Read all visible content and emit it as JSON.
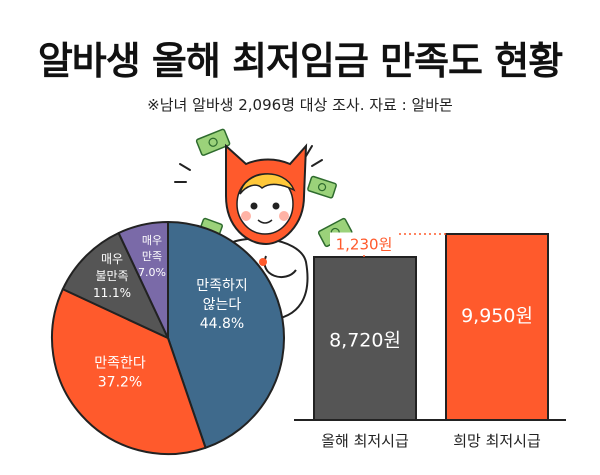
{
  "header": {
    "title": "알바생 올해 최저임금 만족도 현황",
    "subtitle": "※남녀 알바생 2,096명 대상 조사. 자료 : 알바몬"
  },
  "colors": {
    "orange": "#ff5a2c",
    "slate": "#3f6a8c",
    "gray": "#555555",
    "purple": "#7a6aa8",
    "dotted": "#ff5a2c"
  },
  "icons": [
    "money-bill-icon",
    "mascot-cat-icon"
  ],
  "chart_data": [
    {
      "type": "pie",
      "slices": [
        {
          "label": "만족하지\n않는다",
          "value": 44.8,
          "value_label": "44.8%",
          "color": "#3f6a8c"
        },
        {
          "label": "만족한다",
          "value": 37.2,
          "value_label": "37.2%",
          "color": "#ff5a2c"
        },
        {
          "label": "매우\n불만족",
          "value": 11.1,
          "value_label": "11.1%",
          "color": "#555555"
        },
        {
          "label": "매우\n만족",
          "value": 7.0,
          "value_label": "7.0%",
          "color": "#7a6aa8"
        }
      ]
    },
    {
      "type": "bar",
      "categories": [
        "올해 최저시급",
        "희망 최저시급"
      ],
      "values": [
        8720,
        9950
      ],
      "value_labels": [
        "8,720원",
        "9,950원"
      ],
      "colors": [
        "#555555",
        "#ff5a2c"
      ],
      "difference_label": "1,230원"
    }
  ]
}
